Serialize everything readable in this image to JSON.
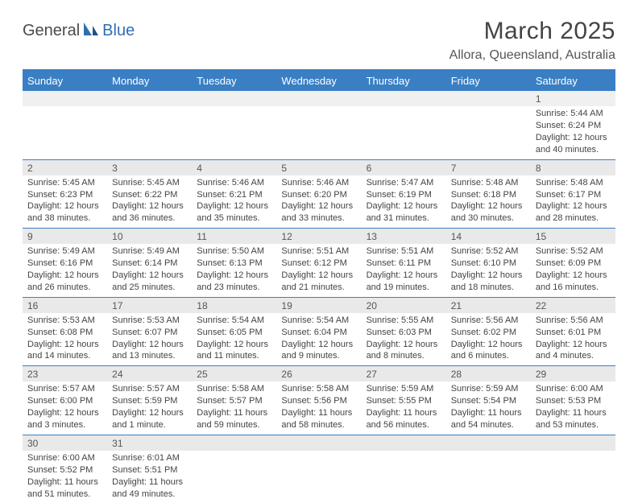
{
  "brand": {
    "part1": "General",
    "part2": "Blue"
  },
  "title": "March 2025",
  "location": "Allora, Queensland, Australia",
  "colors": {
    "header_bg": "#3a7fc4",
    "header_text": "#ffffff",
    "daynum_bg": "#e9e9e9",
    "border": "#3a7fc4",
    "text": "#444444",
    "brand_gray": "#4a4a4a",
    "brand_blue": "#2f6fb0"
  },
  "weekdays": [
    "Sunday",
    "Monday",
    "Tuesday",
    "Wednesday",
    "Thursday",
    "Friday",
    "Saturday"
  ],
  "weeks": [
    [
      null,
      null,
      null,
      null,
      null,
      null,
      {
        "n": "1",
        "sr": "Sunrise: 5:44 AM",
        "ss": "Sunset: 6:24 PM",
        "dl": "Daylight: 12 hours and 40 minutes."
      }
    ],
    [
      {
        "n": "2",
        "sr": "Sunrise: 5:45 AM",
        "ss": "Sunset: 6:23 PM",
        "dl": "Daylight: 12 hours and 38 minutes."
      },
      {
        "n": "3",
        "sr": "Sunrise: 5:45 AM",
        "ss": "Sunset: 6:22 PM",
        "dl": "Daylight: 12 hours and 36 minutes."
      },
      {
        "n": "4",
        "sr": "Sunrise: 5:46 AM",
        "ss": "Sunset: 6:21 PM",
        "dl": "Daylight: 12 hours and 35 minutes."
      },
      {
        "n": "5",
        "sr": "Sunrise: 5:46 AM",
        "ss": "Sunset: 6:20 PM",
        "dl": "Daylight: 12 hours and 33 minutes."
      },
      {
        "n": "6",
        "sr": "Sunrise: 5:47 AM",
        "ss": "Sunset: 6:19 PM",
        "dl": "Daylight: 12 hours and 31 minutes."
      },
      {
        "n": "7",
        "sr": "Sunrise: 5:48 AM",
        "ss": "Sunset: 6:18 PM",
        "dl": "Daylight: 12 hours and 30 minutes."
      },
      {
        "n": "8",
        "sr": "Sunrise: 5:48 AM",
        "ss": "Sunset: 6:17 PM",
        "dl": "Daylight: 12 hours and 28 minutes."
      }
    ],
    [
      {
        "n": "9",
        "sr": "Sunrise: 5:49 AM",
        "ss": "Sunset: 6:16 PM",
        "dl": "Daylight: 12 hours and 26 minutes."
      },
      {
        "n": "10",
        "sr": "Sunrise: 5:49 AM",
        "ss": "Sunset: 6:14 PM",
        "dl": "Daylight: 12 hours and 25 minutes."
      },
      {
        "n": "11",
        "sr": "Sunrise: 5:50 AM",
        "ss": "Sunset: 6:13 PM",
        "dl": "Daylight: 12 hours and 23 minutes."
      },
      {
        "n": "12",
        "sr": "Sunrise: 5:51 AM",
        "ss": "Sunset: 6:12 PM",
        "dl": "Daylight: 12 hours and 21 minutes."
      },
      {
        "n": "13",
        "sr": "Sunrise: 5:51 AM",
        "ss": "Sunset: 6:11 PM",
        "dl": "Daylight: 12 hours and 19 minutes."
      },
      {
        "n": "14",
        "sr": "Sunrise: 5:52 AM",
        "ss": "Sunset: 6:10 PM",
        "dl": "Daylight: 12 hours and 18 minutes."
      },
      {
        "n": "15",
        "sr": "Sunrise: 5:52 AM",
        "ss": "Sunset: 6:09 PM",
        "dl": "Daylight: 12 hours and 16 minutes."
      }
    ],
    [
      {
        "n": "16",
        "sr": "Sunrise: 5:53 AM",
        "ss": "Sunset: 6:08 PM",
        "dl": "Daylight: 12 hours and 14 minutes."
      },
      {
        "n": "17",
        "sr": "Sunrise: 5:53 AM",
        "ss": "Sunset: 6:07 PM",
        "dl": "Daylight: 12 hours and 13 minutes."
      },
      {
        "n": "18",
        "sr": "Sunrise: 5:54 AM",
        "ss": "Sunset: 6:05 PM",
        "dl": "Daylight: 12 hours and 11 minutes."
      },
      {
        "n": "19",
        "sr": "Sunrise: 5:54 AM",
        "ss": "Sunset: 6:04 PM",
        "dl": "Daylight: 12 hours and 9 minutes."
      },
      {
        "n": "20",
        "sr": "Sunrise: 5:55 AM",
        "ss": "Sunset: 6:03 PM",
        "dl": "Daylight: 12 hours and 8 minutes."
      },
      {
        "n": "21",
        "sr": "Sunrise: 5:56 AM",
        "ss": "Sunset: 6:02 PM",
        "dl": "Daylight: 12 hours and 6 minutes."
      },
      {
        "n": "22",
        "sr": "Sunrise: 5:56 AM",
        "ss": "Sunset: 6:01 PM",
        "dl": "Daylight: 12 hours and 4 minutes."
      }
    ],
    [
      {
        "n": "23",
        "sr": "Sunrise: 5:57 AM",
        "ss": "Sunset: 6:00 PM",
        "dl": "Daylight: 12 hours and 3 minutes."
      },
      {
        "n": "24",
        "sr": "Sunrise: 5:57 AM",
        "ss": "Sunset: 5:59 PM",
        "dl": "Daylight: 12 hours and 1 minute."
      },
      {
        "n": "25",
        "sr": "Sunrise: 5:58 AM",
        "ss": "Sunset: 5:57 PM",
        "dl": "Daylight: 11 hours and 59 minutes."
      },
      {
        "n": "26",
        "sr": "Sunrise: 5:58 AM",
        "ss": "Sunset: 5:56 PM",
        "dl": "Daylight: 11 hours and 58 minutes."
      },
      {
        "n": "27",
        "sr": "Sunrise: 5:59 AM",
        "ss": "Sunset: 5:55 PM",
        "dl": "Daylight: 11 hours and 56 minutes."
      },
      {
        "n": "28",
        "sr": "Sunrise: 5:59 AM",
        "ss": "Sunset: 5:54 PM",
        "dl": "Daylight: 11 hours and 54 minutes."
      },
      {
        "n": "29",
        "sr": "Sunrise: 6:00 AM",
        "ss": "Sunset: 5:53 PM",
        "dl": "Daylight: 11 hours and 53 minutes."
      }
    ],
    [
      {
        "n": "30",
        "sr": "Sunrise: 6:00 AM",
        "ss": "Sunset: 5:52 PM",
        "dl": "Daylight: 11 hours and 51 minutes."
      },
      {
        "n": "31",
        "sr": "Sunrise: 6:01 AM",
        "ss": "Sunset: 5:51 PM",
        "dl": "Daylight: 11 hours and 49 minutes."
      },
      null,
      null,
      null,
      null,
      null
    ]
  ]
}
